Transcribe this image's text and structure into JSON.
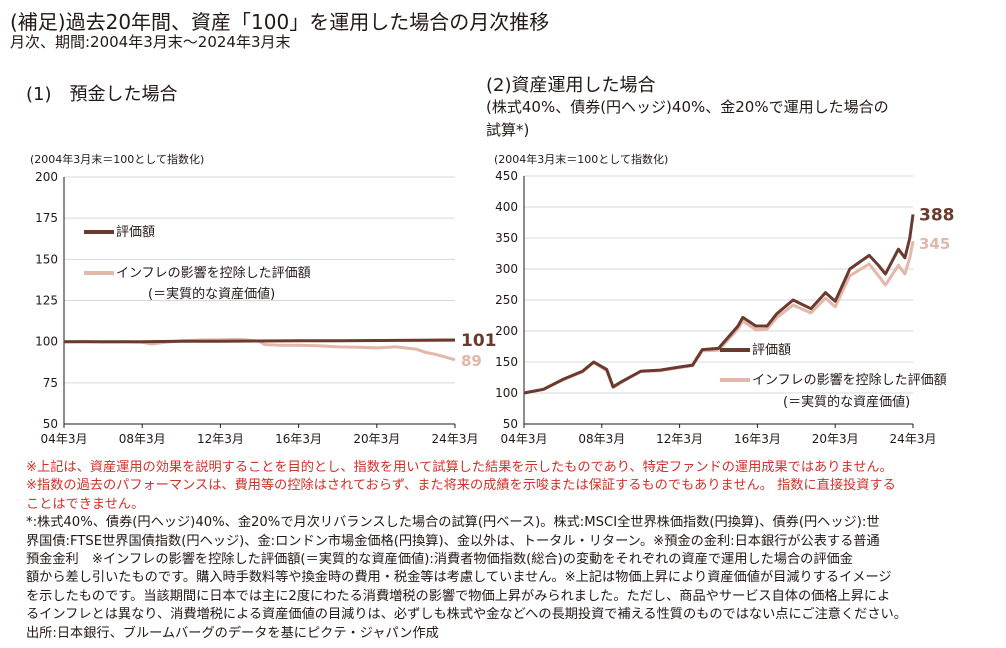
{
  "header": {
    "title": "(補足)過去20年間、資産「100」を運用した場合の月次推移",
    "period": "月次、期間:2004年3月末～2024年3月末"
  },
  "left_panel": {
    "heading": "(1)　預金した場合"
  },
  "right_panel": {
    "heading": "(2)資産運用した場合",
    "subtitle_line1": "(株式40%、債券(円ヘッジ)40%、金20%で運用した場合の",
    "subtitle_line2": "試算*)"
  },
  "colors": {
    "nominal": "#6b3a2e",
    "real": "#e4b7ab",
    "notes_red": "#d2312a",
    "grid": "#d9d9d9",
    "axis": "#231815"
  },
  "chart_data": [
    {
      "type": "line",
      "unit_note": "(2004年3月末＝100として指数化)",
      "x_tick_labels": [
        "04年3月",
        "08年3月",
        "12年3月",
        "16年3月",
        "20年3月",
        "24年3月"
      ],
      "x_range": [
        "2004-03",
        "2024-03"
      ],
      "ylim": [
        50,
        200
      ],
      "y_ticks": [
        50,
        75,
        100,
        125,
        150,
        175,
        200
      ],
      "grid": "horizontal",
      "legend": [
        "評価額",
        "インフレの影響を控除した評価額",
        "(＝実質的な資産価値)"
      ],
      "series": [
        {
          "name": "評価額",
          "end_label": "101",
          "points": [
            [
              "2004-03",
              100
            ],
            [
              "2006-03",
              100
            ],
            [
              "2008-03",
              100
            ],
            [
              "2010-03",
              100.2
            ],
            [
              "2012-03",
              100.3
            ],
            [
              "2014-03",
              100.4
            ],
            [
              "2016-03",
              100.5
            ],
            [
              "2018-03",
              100.6
            ],
            [
              "2020-03",
              100.7
            ],
            [
              "2022-03",
              100.8
            ],
            [
              "2024-03",
              101
            ]
          ]
        },
        {
          "name": "インフレの影響を控除した評価額",
          "end_label": "89",
          "points": [
            [
              "2004-03",
              100
            ],
            [
              "2005-03",
              100.3
            ],
            [
              "2006-03",
              99.8
            ],
            [
              "2007-03",
              100
            ],
            [
              "2008-03",
              99.6
            ],
            [
              "2008-09",
              98.6
            ],
            [
              "2009-03",
              99.4
            ],
            [
              "2010-03",
              100.6
            ],
            [
              "2011-03",
              101
            ],
            [
              "2012-03",
              101.2
            ],
            [
              "2013-03",
              101.4
            ],
            [
              "2013-09",
              100.8
            ],
            [
              "2014-03",
              100.3
            ],
            [
              "2014-06",
              98.3
            ],
            [
              "2015-03",
              97.8
            ],
            [
              "2016-03",
              97.8
            ],
            [
              "2017-03",
              97.5
            ],
            [
              "2018-03",
              96.8
            ],
            [
              "2019-03",
              96.6
            ],
            [
              "2020-03",
              96.2
            ],
            [
              "2021-03",
              96.8
            ],
            [
              "2022-03",
              95.5
            ],
            [
              "2022-09",
              93.5
            ],
            [
              "2023-03",
              92.3
            ],
            [
              "2024-03",
              89
            ]
          ]
        }
      ]
    },
    {
      "type": "line",
      "unit_note": "(2004年3月末＝100として指数化)",
      "x_tick_labels": [
        "04年3月",
        "08年3月",
        "12年3月",
        "16年3月",
        "20年3月",
        "24年3月"
      ],
      "x_range": [
        "2004-03",
        "2024-03"
      ],
      "ylim": [
        50,
        450
      ],
      "y_ticks": [
        50,
        100,
        150,
        200,
        250,
        300,
        350,
        400,
        450
      ],
      "grid": "horizontal",
      "legend": [
        "評価額",
        "インフレの影響を控除した評価額",
        "(＝実質的な資産価値)"
      ],
      "series": [
        {
          "name": "評価額",
          "end_label": "388",
          "points": [
            [
              "2004-03",
              100
            ],
            [
              "2005-03",
              106
            ],
            [
              "2006-03",
              122
            ],
            [
              "2007-03",
              135
            ],
            [
              "2007-10",
              150
            ],
            [
              "2008-06",
              138
            ],
            [
              "2008-10",
              110
            ],
            [
              "2009-03",
              118
            ],
            [
              "2010-03",
              135
            ],
            [
              "2011-03",
              137
            ],
            [
              "2012-03",
              142
            ],
            [
              "2012-11",
              145
            ],
            [
              "2013-05",
              170
            ],
            [
              "2014-03",
              172
            ],
            [
              "2015-03",
              208
            ],
            [
              "2015-06",
              222
            ],
            [
              "2016-02",
              208
            ],
            [
              "2016-09",
              208
            ],
            [
              "2017-03",
              228
            ],
            [
              "2018-01",
              250
            ],
            [
              "2018-12",
              236
            ],
            [
              "2019-09",
              262
            ],
            [
              "2020-03",
              248
            ],
            [
              "2020-12",
              300
            ],
            [
              "2021-12",
              322
            ],
            [
              "2022-06",
              305
            ],
            [
              "2022-10",
              292
            ],
            [
              "2023-06",
              332
            ],
            [
              "2023-10",
              318
            ],
            [
              "2024-01",
              350
            ],
            [
              "2024-03",
              388
            ]
          ]
        },
        {
          "name": "インフレの影響を控除した評価額",
          "end_label": "345",
          "points": [
            [
              "2004-03",
              100
            ],
            [
              "2005-03",
              106
            ],
            [
              "2006-03",
              121
            ],
            [
              "2007-03",
              134
            ],
            [
              "2007-10",
              149
            ],
            [
              "2008-06",
              136
            ],
            [
              "2008-10",
              109
            ],
            [
              "2009-03",
              117
            ],
            [
              "2010-03",
              135
            ],
            [
              "2011-03",
              136
            ],
            [
              "2012-03",
              141
            ],
            [
              "2012-11",
              144
            ],
            [
              "2013-05",
              168
            ],
            [
              "2014-03",
              169
            ],
            [
              "2015-03",
              203
            ],
            [
              "2015-06",
              216
            ],
            [
              "2016-02",
              202
            ],
            [
              "2016-09",
              203
            ],
            [
              "2017-03",
              222
            ],
            [
              "2018-01",
              242
            ],
            [
              "2018-12",
              229
            ],
            [
              "2019-09",
              253
            ],
            [
              "2020-03",
              239
            ],
            [
              "2020-12",
              289
            ],
            [
              "2021-12",
              308
            ],
            [
              "2022-06",
              288
            ],
            [
              "2022-10",
              274
            ],
            [
              "2023-06",
              306
            ],
            [
              "2023-10",
              292
            ],
            [
              "2024-01",
              318
            ],
            [
              "2024-03",
              345
            ]
          ]
        }
      ]
    }
  ],
  "notes": {
    "red_line1": "※上記は、資産運用の効果を説明することを目的とし、指数を用いて試算した結果を示したものであり、特定ファンドの運用成果ではありません。",
    "red_line2": "※指数の過去のパフォーマンスは、費用等の控除はされておらず、また将来の成績を示唆または保証するものでもありません。 指数に直接投資する",
    "red_line3": "ことはできません。",
    "line1": "*:株式40%、債券(円ヘッジ)40%、金20%で月次リバランスした場合の試算(円ベース)。株式:MSCI全世界株価指数(円換算)、債券(円ヘッジ):世",
    "line2": "界国債:FTSE世界国債指数(円ヘッジ)、金:ロンドン市場金価格(円換算)、金以外は、トータル・リターン。※預金の金利:日本銀行が公表する普通",
    "line3": "預金金利　※インフレの影響を控除した評価額(＝実質的な資産価値):消費者物価指数(総合)の変動をそれぞれの資産で運用した場合の評価金",
    "line4": "額から差し引いたものです。購入時手数料等や換金時の費用・税金等は考慮していません。※上記は物価上昇により資産価値が目減りするイメージ",
    "line5": "を示したものです。当該期間に日本では主に2度にわたる消費増税の影響で物価上昇がみられました。ただし、商品やサービス自体の価格上昇によ",
    "line6": "るインフレとは異なり、消費増税による資産価値の目減りは、必ずしも株式や金などへの長期投資で補える性質のものではない点にご注意ください。",
    "source": "出所:日本銀行、ブルームバーグのデータを基にピクテ・ジャパン作成"
  }
}
